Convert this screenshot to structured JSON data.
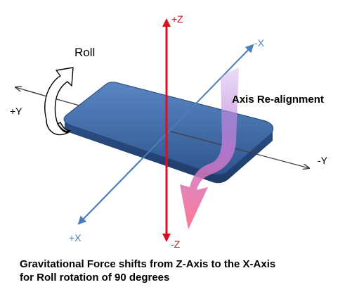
{
  "labels": {
    "plus_z": "+Z",
    "minus_z": "-Z",
    "minus_x": "-X",
    "plus_x": "+X",
    "plus_y": "+Y",
    "minus_y": "-Y",
    "roll": "Roll",
    "axis_realignment": "Axis Re-alignment"
  },
  "caption": {
    "line1": "Gravitational Force  shifts from Z-Axis to the X-Axis",
    "line2": "for Roll rotation of 90 degrees"
  },
  "colors": {
    "z_axis": "#d81020",
    "x_axis": "#4a7ebb",
    "y_axis": "#404040",
    "device_fill": "#3a64a0",
    "realign_top": "#b48ad8",
    "realign_bottom": "#ff6f8a"
  },
  "icons": {
    "roll_arrow": "curved-rotation-arrow-icon",
    "realign_arrow": "curved-down-arrow-icon"
  }
}
